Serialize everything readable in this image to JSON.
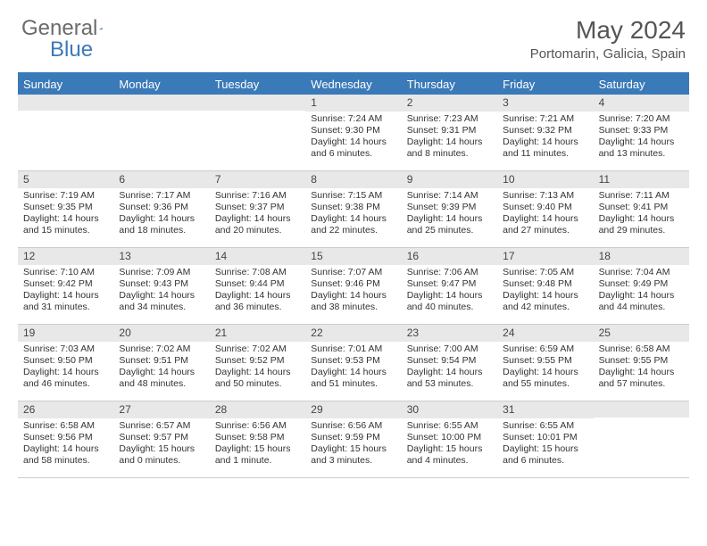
{
  "logo": {
    "text1": "General",
    "text2": "Blue"
  },
  "title": "May 2024",
  "location": "Portomarin, Galicia, Spain",
  "colors": {
    "header_bg": "#3a7ab8",
    "header_text": "#ffffff",
    "daynum_bg": "#e8e8e8",
    "border": "#cccccc",
    "body_text": "#333333",
    "title_text": "#555555"
  },
  "day_labels": [
    "Sunday",
    "Monday",
    "Tuesday",
    "Wednesday",
    "Thursday",
    "Friday",
    "Saturday"
  ],
  "weeks": [
    [
      {
        "n": "",
        "empty": true
      },
      {
        "n": "",
        "empty": true
      },
      {
        "n": "",
        "empty": true
      },
      {
        "n": "1",
        "sr": "7:24 AM",
        "ss": "9:30 PM",
        "dl": "14 hours and 6 minutes."
      },
      {
        "n": "2",
        "sr": "7:23 AM",
        "ss": "9:31 PM",
        "dl": "14 hours and 8 minutes."
      },
      {
        "n": "3",
        "sr": "7:21 AM",
        "ss": "9:32 PM",
        "dl": "14 hours and 11 minutes."
      },
      {
        "n": "4",
        "sr": "7:20 AM",
        "ss": "9:33 PM",
        "dl": "14 hours and 13 minutes."
      }
    ],
    [
      {
        "n": "5",
        "sr": "7:19 AM",
        "ss": "9:35 PM",
        "dl": "14 hours and 15 minutes."
      },
      {
        "n": "6",
        "sr": "7:17 AM",
        "ss": "9:36 PM",
        "dl": "14 hours and 18 minutes."
      },
      {
        "n": "7",
        "sr": "7:16 AM",
        "ss": "9:37 PM",
        "dl": "14 hours and 20 minutes."
      },
      {
        "n": "8",
        "sr": "7:15 AM",
        "ss": "9:38 PM",
        "dl": "14 hours and 22 minutes."
      },
      {
        "n": "9",
        "sr": "7:14 AM",
        "ss": "9:39 PM",
        "dl": "14 hours and 25 minutes."
      },
      {
        "n": "10",
        "sr": "7:13 AM",
        "ss": "9:40 PM",
        "dl": "14 hours and 27 minutes."
      },
      {
        "n": "11",
        "sr": "7:11 AM",
        "ss": "9:41 PM",
        "dl": "14 hours and 29 minutes."
      }
    ],
    [
      {
        "n": "12",
        "sr": "7:10 AM",
        "ss": "9:42 PM",
        "dl": "14 hours and 31 minutes."
      },
      {
        "n": "13",
        "sr": "7:09 AM",
        "ss": "9:43 PM",
        "dl": "14 hours and 34 minutes."
      },
      {
        "n": "14",
        "sr": "7:08 AM",
        "ss": "9:44 PM",
        "dl": "14 hours and 36 minutes."
      },
      {
        "n": "15",
        "sr": "7:07 AM",
        "ss": "9:46 PM",
        "dl": "14 hours and 38 minutes."
      },
      {
        "n": "16",
        "sr": "7:06 AM",
        "ss": "9:47 PM",
        "dl": "14 hours and 40 minutes."
      },
      {
        "n": "17",
        "sr": "7:05 AM",
        "ss": "9:48 PM",
        "dl": "14 hours and 42 minutes."
      },
      {
        "n": "18",
        "sr": "7:04 AM",
        "ss": "9:49 PM",
        "dl": "14 hours and 44 minutes."
      }
    ],
    [
      {
        "n": "19",
        "sr": "7:03 AM",
        "ss": "9:50 PM",
        "dl": "14 hours and 46 minutes."
      },
      {
        "n": "20",
        "sr": "7:02 AM",
        "ss": "9:51 PM",
        "dl": "14 hours and 48 minutes."
      },
      {
        "n": "21",
        "sr": "7:02 AM",
        "ss": "9:52 PM",
        "dl": "14 hours and 50 minutes."
      },
      {
        "n": "22",
        "sr": "7:01 AM",
        "ss": "9:53 PM",
        "dl": "14 hours and 51 minutes."
      },
      {
        "n": "23",
        "sr": "7:00 AM",
        "ss": "9:54 PM",
        "dl": "14 hours and 53 minutes."
      },
      {
        "n": "24",
        "sr": "6:59 AM",
        "ss": "9:55 PM",
        "dl": "14 hours and 55 minutes."
      },
      {
        "n": "25",
        "sr": "6:58 AM",
        "ss": "9:55 PM",
        "dl": "14 hours and 57 minutes."
      }
    ],
    [
      {
        "n": "26",
        "sr": "6:58 AM",
        "ss": "9:56 PM",
        "dl": "14 hours and 58 minutes."
      },
      {
        "n": "27",
        "sr": "6:57 AM",
        "ss": "9:57 PM",
        "dl": "15 hours and 0 minutes."
      },
      {
        "n": "28",
        "sr": "6:56 AM",
        "ss": "9:58 PM",
        "dl": "15 hours and 1 minute."
      },
      {
        "n": "29",
        "sr": "6:56 AM",
        "ss": "9:59 PM",
        "dl": "15 hours and 3 minutes."
      },
      {
        "n": "30",
        "sr": "6:55 AM",
        "ss": "10:00 PM",
        "dl": "15 hours and 4 minutes."
      },
      {
        "n": "31",
        "sr": "6:55 AM",
        "ss": "10:01 PM",
        "dl": "15 hours and 6 minutes."
      },
      {
        "n": "",
        "empty": true
      }
    ]
  ],
  "labels": {
    "sunrise": "Sunrise: ",
    "sunset": "Sunset: ",
    "daylight": "Daylight: "
  }
}
